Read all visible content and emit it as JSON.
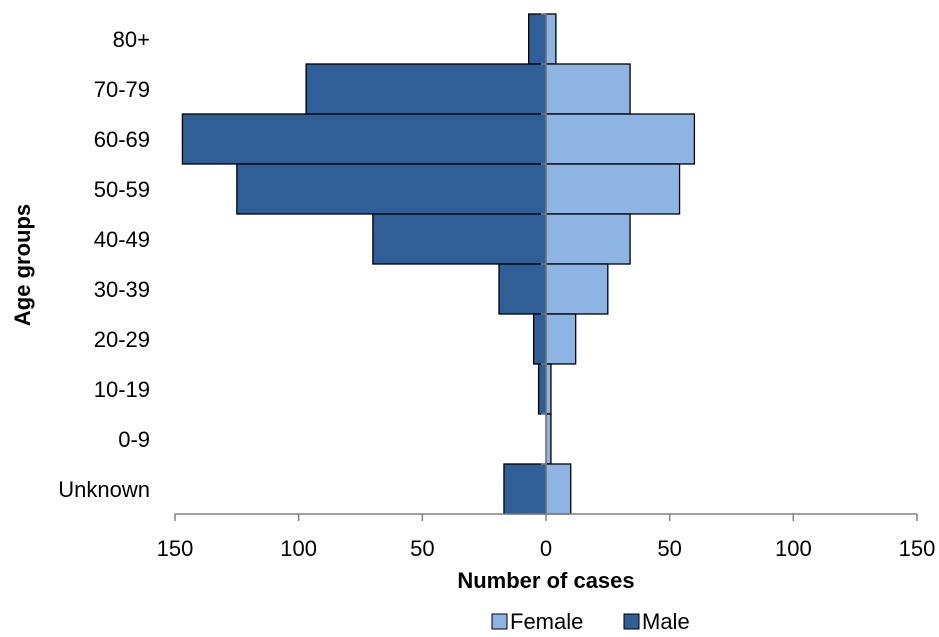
{
  "chart_data": {
    "type": "bar",
    "orientation": "horizontal",
    "subtype": "population-pyramid",
    "categories": [
      "80+",
      "70-79",
      "60-69",
      "50-59",
      "40-49",
      "30-39",
      "20-29",
      "10-19",
      "0-9",
      "Unknown"
    ],
    "series": [
      {
        "name": "Female",
        "side": "right",
        "color": "#8EB4E3",
        "values": [
          4,
          34,
          60,
          54,
          34,
          25,
          12,
          2,
          2,
          10
        ]
      },
      {
        "name": "Male",
        "side": "left",
        "color": "#2F5F96",
        "values": [
          7,
          97,
          147,
          125,
          70,
          19,
          5,
          3,
          0,
          17
        ]
      }
    ],
    "xlabel": "Number of cases",
    "ylabel": "Age groups",
    "xlim": [
      -150,
      150
    ],
    "x_ticks": [
      -150,
      -100,
      -50,
      0,
      50,
      100,
      150
    ],
    "x_tick_labels": [
      "150",
      "100",
      "50",
      "0",
      "50",
      "100",
      "150"
    ],
    "grid": false,
    "legend_position": "bottom"
  }
}
